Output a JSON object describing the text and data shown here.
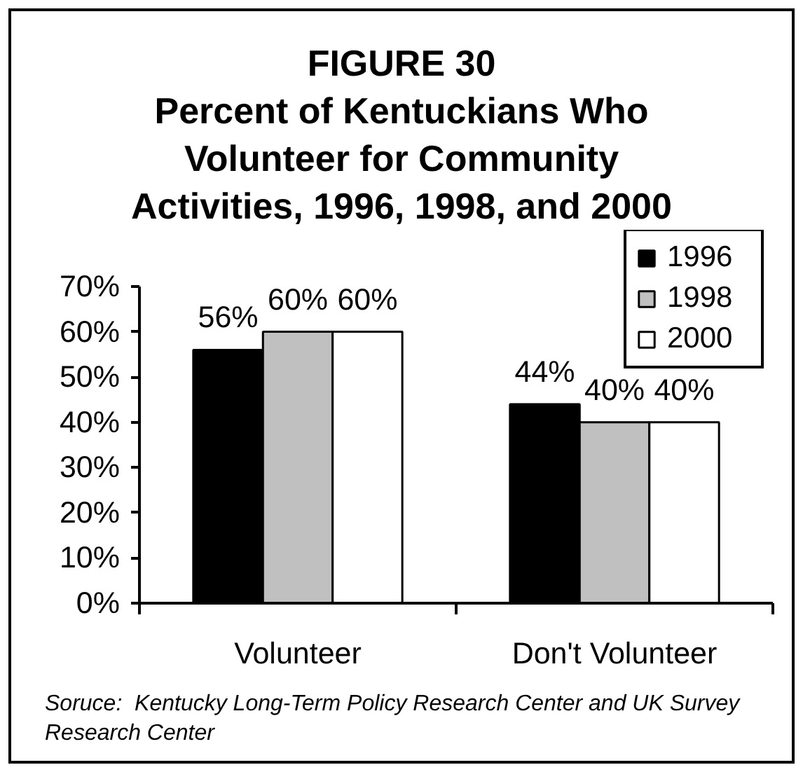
{
  "chart_data": {
    "type": "bar",
    "title": "FIGURE 30\nPercent of Kentuckians Who\nVolunteer for Community\nActivities, 1996, 1998, and 2000",
    "categories": [
      "Volunteer",
      "Don't Volunteer"
    ],
    "series": [
      {
        "name": "1996",
        "color": "#000000",
        "values": [
          56,
          44
        ],
        "value_labels": [
          "56%",
          "44%"
        ]
      },
      {
        "name": "1998",
        "color": "#c0c0c0",
        "values": [
          60,
          40
        ],
        "value_labels": [
          "60%",
          "40%"
        ]
      },
      {
        "name": "2000",
        "color": "#ffffff",
        "values": [
          60,
          40
        ],
        "value_labels": [
          "60%",
          "40%"
        ]
      }
    ],
    "ylim": [
      0,
      70
    ],
    "yticks": [
      {
        "value": 0,
        "label": "0%"
      },
      {
        "value": 10,
        "label": "10%"
      },
      {
        "value": 20,
        "label": "20%"
      },
      {
        "value": 30,
        "label": "30%"
      },
      {
        "value": 40,
        "label": "40%"
      },
      {
        "value": 50,
        "label": "50%"
      },
      {
        "value": 60,
        "label": "60%"
      },
      {
        "value": 70,
        "label": "70%"
      }
    ],
    "grid": false,
    "legend": "top right",
    "annotations": [
      "Soruce:  Kentucky Long-Term Policy Research Center and UK Survey Research Center"
    ]
  }
}
